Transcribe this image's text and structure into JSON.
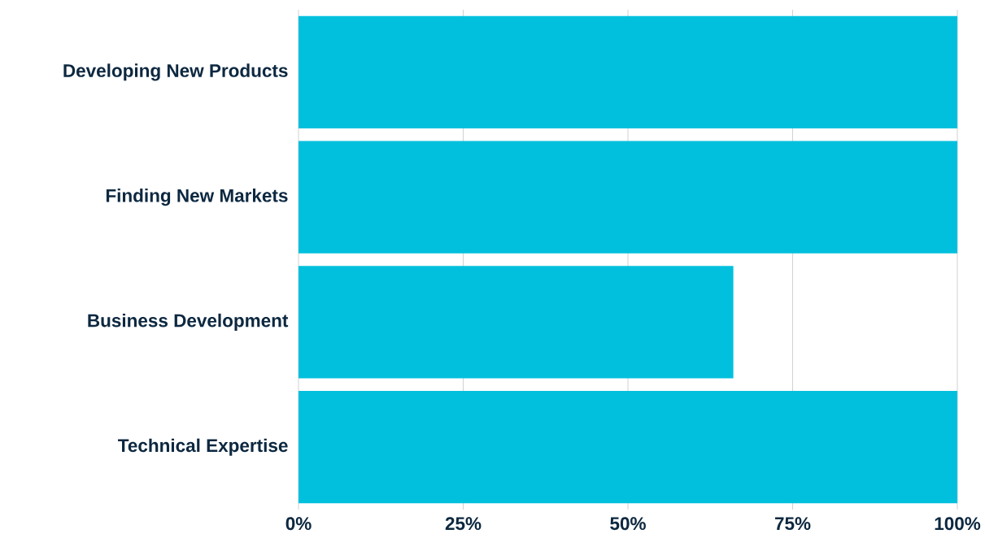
{
  "chart_data": {
    "type": "bar",
    "orientation": "horizontal",
    "categories": [
      "Developing New Products",
      "Finding New Markets",
      "Business Development",
      "Technical Expertise"
    ],
    "values": [
      100,
      100,
      66,
      100
    ],
    "color": "#00c0dd",
    "xlim": [
      0,
      100
    ],
    "xticks": [
      {
        "value": 0,
        "label": "0%"
      },
      {
        "value": 25,
        "label": "25%"
      },
      {
        "value": 50,
        "label": "50%"
      },
      {
        "value": 75,
        "label": "75%"
      },
      {
        "value": 100,
        "label": "100%"
      }
    ],
    "grid": "x"
  }
}
